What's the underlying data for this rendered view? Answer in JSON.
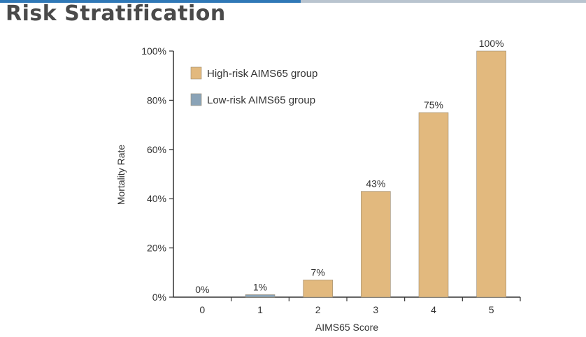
{
  "slide": {
    "title": "Risk Stratification"
  },
  "colors": {
    "high_risk": "#e2b97e",
    "low_risk": "#8aa3b7",
    "axis": "#333333",
    "accent_blue": "#2f78b7"
  },
  "chart_data": {
    "type": "bar",
    "xlabel": "AIMS65 Score",
    "ylabel": "Mortality Rate",
    "categories": [
      "0",
      "1",
      "2",
      "3",
      "4",
      "5"
    ],
    "values": [
      0,
      1,
      7,
      43,
      75,
      100
    ],
    "data_labels": [
      "0%",
      "1%",
      "7%",
      "43%",
      "75%",
      "100%"
    ],
    "bar_groups": [
      "low",
      "low",
      "high",
      "high",
      "high",
      "high"
    ],
    "ylim": [
      0,
      100
    ],
    "yticks": [
      0,
      20,
      40,
      60,
      80,
      100
    ],
    "ytick_labels": [
      "0%",
      "20%",
      "40%",
      "60%",
      "80%",
      "100%"
    ],
    "grid": false,
    "legend_position": "top-left",
    "legend": [
      {
        "label": "High-risk AIMS65 group",
        "group": "high"
      },
      {
        "label": "Low-risk AIMS65 group",
        "group": "low"
      }
    ]
  }
}
